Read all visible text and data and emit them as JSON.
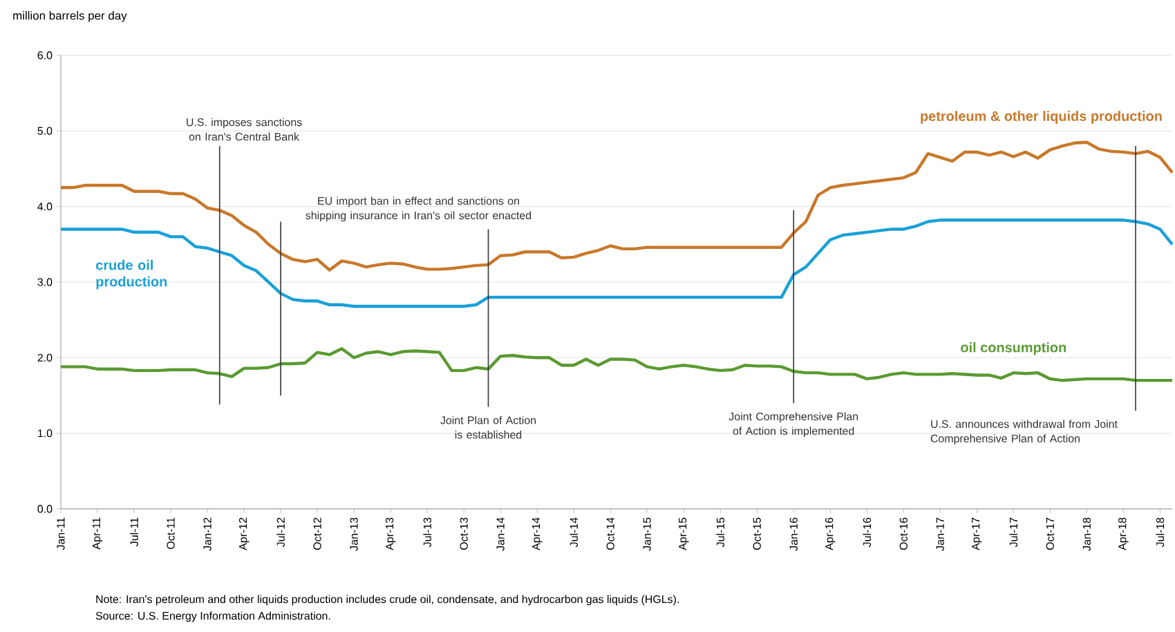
{
  "chart_data": {
    "type": "line",
    "ylabel": "million barrels per day",
    "x": [
      "2011-01",
      "2011-02",
      "2011-03",
      "2011-04",
      "2011-05",
      "2011-06",
      "2011-07",
      "2011-08",
      "2011-09",
      "2011-10",
      "2011-11",
      "2011-12",
      "2012-01",
      "2012-02",
      "2012-03",
      "2012-04",
      "2012-05",
      "2012-06",
      "2012-07",
      "2012-08",
      "2012-09",
      "2012-10",
      "2012-11",
      "2012-12",
      "2013-01",
      "2013-02",
      "2013-03",
      "2013-04",
      "2013-05",
      "2013-06",
      "2013-07",
      "2013-08",
      "2013-09",
      "2013-10",
      "2013-11",
      "2013-12",
      "2014-01",
      "2014-02",
      "2014-03",
      "2014-04",
      "2014-05",
      "2014-06",
      "2014-07",
      "2014-08",
      "2014-09",
      "2014-10",
      "2014-11",
      "2014-12",
      "2015-01",
      "2015-02",
      "2015-03",
      "2015-04",
      "2015-05",
      "2015-06",
      "2015-07",
      "2015-08",
      "2015-09",
      "2015-10",
      "2015-11",
      "2015-12",
      "2016-01",
      "2016-02",
      "2016-03",
      "2016-04",
      "2016-05",
      "2016-06",
      "2016-07",
      "2016-08",
      "2016-09",
      "2016-10",
      "2016-11",
      "2016-12",
      "2017-01",
      "2017-02",
      "2017-03",
      "2017-04",
      "2017-05",
      "2017-06",
      "2017-07",
      "2017-08",
      "2017-09",
      "2017-10",
      "2017-11",
      "2017-12",
      "2018-01",
      "2018-02",
      "2018-03",
      "2018-04",
      "2018-05",
      "2018-06",
      "2018-07",
      "2018-08"
    ],
    "series": [
      {
        "name": "petroleum & other liquids production",
        "color": "#c8782a",
        "values": [
          4.25,
          4.25,
          4.28,
          4.28,
          4.28,
          4.28,
          4.2,
          4.2,
          4.2,
          4.17,
          4.17,
          4.1,
          3.98,
          3.95,
          3.88,
          3.75,
          3.66,
          3.5,
          3.38,
          3.3,
          3.27,
          3.3,
          3.16,
          3.28,
          3.25,
          3.2,
          3.23,
          3.25,
          3.24,
          3.2,
          3.17,
          3.17,
          3.18,
          3.2,
          3.22,
          3.23,
          3.35,
          3.36,
          3.4,
          3.4,
          3.4,
          3.32,
          3.33,
          3.38,
          3.42,
          3.48,
          3.44,
          3.44,
          3.46,
          3.46,
          3.46,
          3.46,
          3.46,
          3.46,
          3.46,
          3.46,
          3.46,
          3.46,
          3.46,
          3.46,
          3.65,
          3.8,
          4.15,
          4.25,
          4.28,
          4.3,
          4.32,
          4.34,
          4.36,
          4.38,
          4.45,
          4.7,
          4.65,
          4.6,
          4.72,
          4.72,
          4.68,
          4.72,
          4.66,
          4.72,
          4.64,
          4.75,
          4.8,
          4.84,
          4.85,
          4.76,
          4.73,
          4.72,
          4.7,
          4.73,
          4.65,
          4.45
        ]
      },
      {
        "name": "crude oil production",
        "color": "#1aa0d8",
        "values": [
          3.7,
          3.7,
          3.7,
          3.7,
          3.7,
          3.7,
          3.66,
          3.66,
          3.66,
          3.6,
          3.6,
          3.47,
          3.45,
          3.4,
          3.35,
          3.22,
          3.15,
          3.0,
          2.85,
          2.77,
          2.75,
          2.75,
          2.7,
          2.7,
          2.68,
          2.68,
          2.68,
          2.68,
          2.68,
          2.68,
          2.68,
          2.68,
          2.68,
          2.68,
          2.7,
          2.8,
          2.8,
          2.8,
          2.8,
          2.8,
          2.8,
          2.8,
          2.8,
          2.8,
          2.8,
          2.8,
          2.8,
          2.8,
          2.8,
          2.8,
          2.8,
          2.8,
          2.8,
          2.8,
          2.8,
          2.8,
          2.8,
          2.8,
          2.8,
          2.8,
          3.1,
          3.2,
          3.38,
          3.56,
          3.62,
          3.64,
          3.66,
          3.68,
          3.7,
          3.7,
          3.74,
          3.8,
          3.82,
          3.82,
          3.82,
          3.82,
          3.82,
          3.82,
          3.82,
          3.82,
          3.82,
          3.82,
          3.82,
          3.82,
          3.82,
          3.82,
          3.82,
          3.82,
          3.8,
          3.77,
          3.7,
          3.5
        ]
      },
      {
        "name": "oil consumption",
        "color": "#5a9a32",
        "values": [
          1.88,
          1.88,
          1.88,
          1.85,
          1.85,
          1.85,
          1.83,
          1.83,
          1.83,
          1.84,
          1.84,
          1.84,
          1.8,
          1.79,
          1.75,
          1.86,
          1.86,
          1.87,
          1.92,
          1.92,
          1.93,
          2.07,
          2.04,
          2.12,
          2.0,
          2.06,
          2.08,
          2.04,
          2.08,
          2.09,
          2.08,
          2.07,
          1.83,
          1.83,
          1.87,
          1.85,
          2.02,
          2.03,
          2.01,
          2.0,
          2.0,
          1.9,
          1.9,
          1.98,
          1.9,
          1.98,
          1.98,
          1.97,
          1.88,
          1.85,
          1.88,
          1.9,
          1.88,
          1.85,
          1.83,
          1.84,
          1.9,
          1.89,
          1.89,
          1.88,
          1.82,
          1.8,
          1.8,
          1.78,
          1.78,
          1.78,
          1.72,
          1.74,
          1.78,
          1.8,
          1.78,
          1.78,
          1.78,
          1.79,
          1.78,
          1.77,
          1.77,
          1.73,
          1.8,
          1.79,
          1.8,
          1.72,
          1.7,
          1.71,
          1.72,
          1.72,
          1.72,
          1.72,
          1.7,
          1.7,
          1.7,
          1.7
        ]
      }
    ],
    "xlim": [
      "2011-01",
      "2018-08"
    ],
    "xticks": [
      {
        "value": "2011-01",
        "label": "Jan-11"
      },
      {
        "value": "2011-04",
        "label": "Apr-11"
      },
      {
        "value": "2011-07",
        "label": "Jul-11"
      },
      {
        "value": "2011-10",
        "label": "Oct-11"
      },
      {
        "value": "2012-01",
        "label": "Jan-12"
      },
      {
        "value": "2012-04",
        "label": "Apr-12"
      },
      {
        "value": "2012-07",
        "label": "Jul-12"
      },
      {
        "value": "2012-10",
        "label": "Oct-12"
      },
      {
        "value": "2013-01",
        "label": "Jan-13"
      },
      {
        "value": "2013-04",
        "label": "Apr-13"
      },
      {
        "value": "2013-07",
        "label": "Jul-13"
      },
      {
        "value": "2013-10",
        "label": "Oct-13"
      },
      {
        "value": "2014-01",
        "label": "Jan-14"
      },
      {
        "value": "2014-04",
        "label": "Apr-14"
      },
      {
        "value": "2014-07",
        "label": "Jul-14"
      },
      {
        "value": "2014-10",
        "label": "Oct-14"
      },
      {
        "value": "2015-01",
        "label": "Jan-15"
      },
      {
        "value": "2015-04",
        "label": "Apr-15"
      },
      {
        "value": "2015-07",
        "label": "Jul-15"
      },
      {
        "value": "2015-10",
        "label": "Oct-15"
      },
      {
        "value": "2016-01",
        "label": "Jan-16"
      },
      {
        "value": "2016-04",
        "label": "Apr-16"
      },
      {
        "value": "2016-07",
        "label": "Jul-16"
      },
      {
        "value": "2016-10",
        "label": "Oct-16"
      },
      {
        "value": "2017-01",
        "label": "Jan-17"
      },
      {
        "value": "2017-04",
        "label": "Apr-17"
      },
      {
        "value": "2017-07",
        "label": "Jul-17"
      },
      {
        "value": "2017-10",
        "label": "Oct-17"
      },
      {
        "value": "2018-01",
        "label": "Jan-18"
      },
      {
        "value": "2018-04",
        "label": "Apr-18"
      },
      {
        "value": "2018-07",
        "label": "Jul-18"
      }
    ],
    "ylim": [
      0,
      6
    ],
    "yticks": [
      {
        "value": 0,
        "label": "0.0"
      },
      {
        "value": 1,
        "label": "1.0"
      },
      {
        "value": 2,
        "label": "2.0"
      },
      {
        "value": 3,
        "label": "3.0"
      },
      {
        "value": 4,
        "label": "4.0"
      },
      {
        "value": 5,
        "label": "5.0"
      },
      {
        "value": 6,
        "label": "6.0"
      }
    ],
    "grid": "y",
    "ref_lines": [
      {
        "axis": "x",
        "value": "2012-02",
        "label": "U.S. imposes sanctions on Iran's Central Bank",
        "color": "#333333"
      },
      {
        "axis": "x",
        "value": "2012-07",
        "label": "EU import ban in effect and sanctions on shipping insurance in Iran's oil sector enacted",
        "color": "#333333"
      },
      {
        "axis": "x",
        "value": "2013-12",
        "label": "Joint Plan of Action is established",
        "color": "#333333"
      },
      {
        "axis": "x",
        "value": "2016-01",
        "label": "Joint Comprehensive Plan of Action is implemented",
        "color": "#333333"
      },
      {
        "axis": "x",
        "value": "2018-05",
        "label": "U.S. announces withdrawal from Joint Comprehensive Plan of Action",
        "color": "#333333"
      }
    ],
    "annotations": [
      "Note: Iran's petroleum and other liquids production includes crude oil, condensate, and hydrocarbon gas liquids (HGLs).",
      "Source: U.S. Energy Information Administration."
    ]
  }
}
